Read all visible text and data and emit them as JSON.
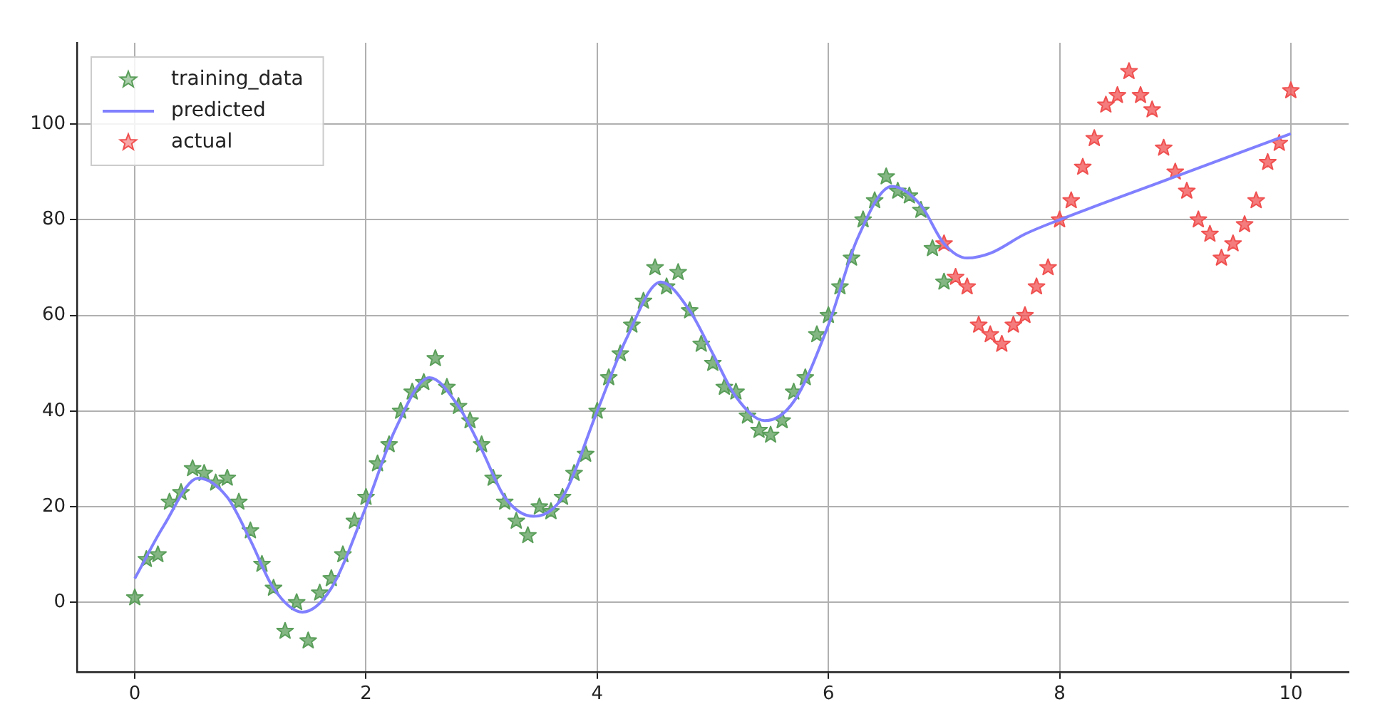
{
  "chart_data": {
    "type": "scatter",
    "xlim": [
      -0.5,
      10.5
    ],
    "ylim": [
      -14.5,
      117
    ],
    "xticks": [
      0,
      2,
      4,
      6,
      8,
      10
    ],
    "yticks": [
      0,
      20,
      40,
      60,
      80,
      100
    ],
    "grid": true,
    "legend": "top left",
    "series": [
      {
        "name": "training_data",
        "marker": "star",
        "color": "#5a9e5a",
        "x": [
          0,
          0.1,
          0.2,
          0.3,
          0.4,
          0.5,
          0.6,
          0.7,
          0.8,
          0.9,
          1.0,
          1.1,
          1.2,
          1.3,
          1.4,
          1.5,
          1.6,
          1.7,
          1.8,
          1.9,
          2.0,
          2.1,
          2.2,
          2.3,
          2.4,
          2.5,
          2.6,
          2.7,
          2.8,
          2.9,
          3.0,
          3.1,
          3.2,
          3.3,
          3.4,
          3.5,
          3.6,
          3.7,
          3.8,
          3.9,
          4.0,
          4.1,
          4.2,
          4.3,
          4.4,
          4.5,
          4.6,
          4.7,
          4.8,
          4.9,
          5.0,
          5.1,
          5.2,
          5.3,
          5.4,
          5.5,
          5.6,
          5.7,
          5.8,
          5.9,
          6.0,
          6.1,
          6.2,
          6.3,
          6.4,
          6.5,
          6.6,
          6.7,
          6.8,
          6.9,
          7.0
        ],
        "values": [
          1,
          9,
          10,
          21,
          23,
          28,
          27,
          25,
          26,
          21,
          15,
          8,
          3,
          -6,
          0,
          -8,
          2,
          5,
          10,
          17,
          22,
          29,
          33,
          40,
          44,
          46,
          51,
          45,
          41,
          38,
          33,
          26,
          21,
          17,
          14,
          20,
          19,
          22,
          27,
          31,
          40,
          47,
          52,
          58,
          63,
          70,
          66,
          69,
          61,
          54,
          50,
          45,
          44,
          39,
          36,
          35,
          38,
          44,
          47,
          56,
          60,
          66,
          72,
          80,
          84,
          89,
          86,
          85,
          82,
          74,
          67
        ]
      },
      {
        "name": "predicted",
        "type": "line",
        "marker": "none",
        "line_style": "solid",
        "color": "#8080ff",
        "x": [
          0,
          0.25,
          0.55,
          0.8,
          1.0,
          1.2,
          1.45,
          1.7,
          2.0,
          2.25,
          2.55,
          2.8,
          3.0,
          3.2,
          3.45,
          3.7,
          4.0,
          4.25,
          4.55,
          4.8,
          5.0,
          5.2,
          5.45,
          5.7,
          6.0,
          6.25,
          6.55,
          6.8,
          7.0,
          7.2,
          7.4,
          7.7,
          8.0,
          9.0,
          10.0
        ],
        "values": [
          5,
          16,
          26,
          22,
          13,
          3,
          -2,
          3,
          20,
          36,
          47,
          41,
          32,
          22,
          18,
          22,
          40,
          55,
          67,
          61,
          52,
          43,
          38,
          42,
          58,
          76,
          87,
          83,
          75,
          72,
          73,
          77,
          80,
          89,
          98
        ]
      },
      {
        "name": "actual",
        "marker": "star",
        "color": "#f05050",
        "x": [
          7.0,
          7.1,
          7.2,
          7.3,
          7.4,
          7.5,
          7.6,
          7.7,
          7.8,
          7.9,
          8.0,
          8.1,
          8.2,
          8.3,
          8.4,
          8.5,
          8.6,
          8.7,
          8.8,
          8.9,
          9.0,
          9.1,
          9.2,
          9.3,
          9.4,
          9.5,
          9.6,
          9.7,
          9.8,
          9.9,
          10.0
        ],
        "values": [
          75,
          68,
          66,
          58,
          56,
          54,
          58,
          60,
          66,
          70,
          80,
          84,
          91,
          97,
          104,
          106,
          111,
          106,
          103,
          95,
          90,
          86,
          80,
          77,
          72,
          75,
          79,
          84,
          92,
          96,
          107
        ]
      }
    ]
  }
}
